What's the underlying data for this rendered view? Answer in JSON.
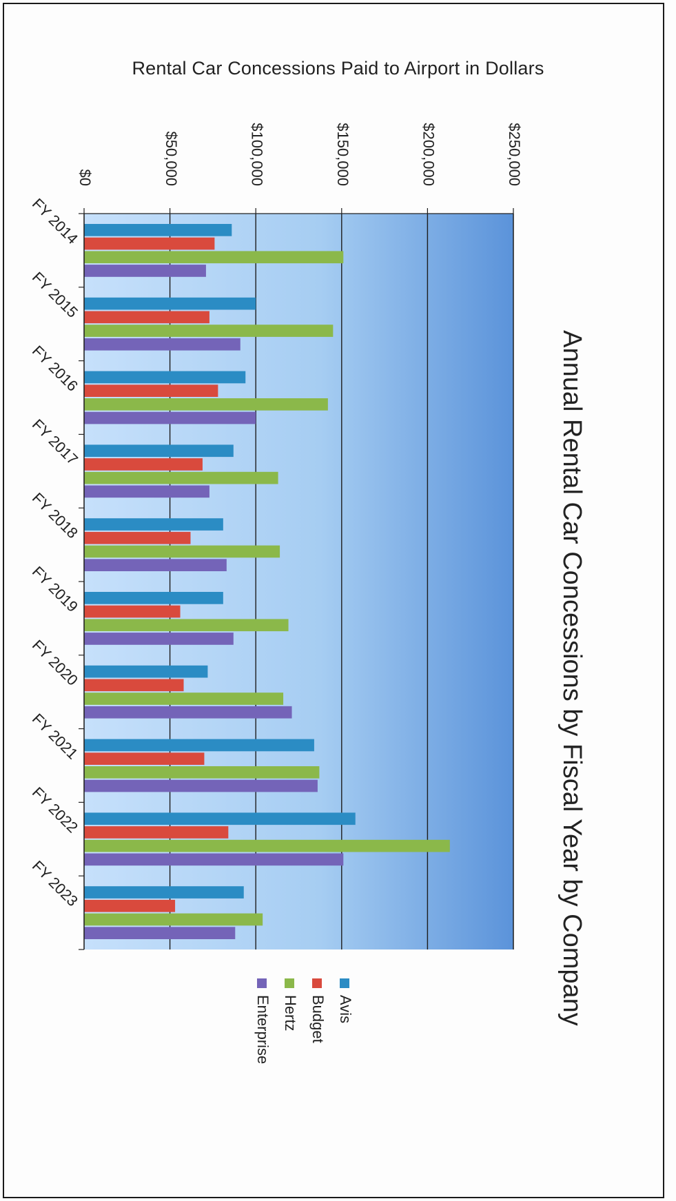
{
  "page_caption": "Rental Car Concessions Paid to Airport in Dollars",
  "chart_data": {
    "type": "bar",
    "orientation": "horizontal",
    "title": "Annual Rental Car Concessions by Fiscal Year by Company",
    "categories": [
      "FY 2014",
      "FY 2015",
      "FY 2016",
      "FY 2017",
      "FY 2018",
      "FY 2019",
      "FY 2020",
      "FY 2021",
      "FY 2022",
      "FY 2023"
    ],
    "series": [
      {
        "name": "Avis",
        "color": "#2b8cc4",
        "values": [
          86000,
          100000,
          94000,
          87000,
          81000,
          81000,
          72000,
          134000,
          158000,
          93000
        ]
      },
      {
        "name": "Budget",
        "color": "#d94a3d",
        "values": [
          76000,
          73000,
          78000,
          69000,
          62000,
          56000,
          58000,
          70000,
          84000,
          53000
        ]
      },
      {
        "name": "Hertz",
        "color": "#8bb84a",
        "values": [
          151000,
          145000,
          142000,
          113000,
          114000,
          119000,
          116000,
          137000,
          213000,
          104000
        ]
      },
      {
        "name": "Enterprise",
        "color": "#7464b8",
        "values": [
          71000,
          91000,
          100000,
          73000,
          83000,
          87000,
          121000,
          136000,
          151000,
          88000
        ]
      }
    ],
    "value_axis": {
      "min": 0,
      "max": 250000,
      "ticks": [
        0,
        50000,
        100000,
        150000,
        200000,
        250000
      ],
      "tick_labels": [
        "$0",
        "$50,000",
        "$100,000",
        "$150,000",
        "$200,000",
        "$250,000"
      ]
    },
    "grid": true,
    "plot_background": "#b4d6f6",
    "legend_position": "bottom"
  }
}
